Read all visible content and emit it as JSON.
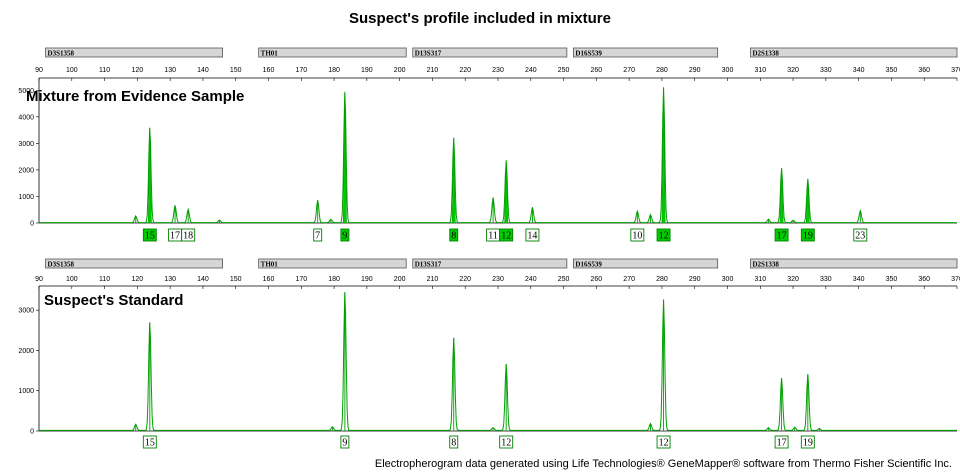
{
  "title": "Suspect's profile included in mixture",
  "credit": "Electropherogram data generated using Life Technologies® GeneMapper® software from Thermo Fisher Scientific Inc.",
  "colors": {
    "peak": "#00cc00",
    "peak_line": "#00a000",
    "allele_box": "#008000",
    "marker_bar": "#d6d6d6"
  },
  "chart_data": [
    {
      "type": "electropherogram",
      "panel_label": "Mixture from Evidence Sample",
      "filled": true,
      "xlim": [
        90,
        370
      ],
      "ylim": [
        0,
        5200
      ],
      "x_ticks": [
        90,
        100,
        110,
        120,
        130,
        140,
        150,
        160,
        170,
        180,
        190,
        200,
        210,
        220,
        230,
        240,
        250,
        260,
        270,
        280,
        290,
        300,
        310,
        320,
        330,
        340,
        350,
        360,
        370
      ],
      "y_ticks": [
        0,
        1000,
        2000,
        3000,
        4000,
        5000
      ],
      "markers": [
        {
          "name": "D3S1358",
          "start": 92,
          "end": 146
        },
        {
          "name": "TH01",
          "start": 157,
          "end": 202
        },
        {
          "name": "D13S317",
          "start": 204,
          "end": 251
        },
        {
          "name": "D16S539",
          "start": 253,
          "end": 297
        },
        {
          "name": "D2S1338",
          "start": 307,
          "end": 370
        }
      ],
      "peaks": [
        {
          "x": 119.5,
          "y": 250
        },
        {
          "x": 123.8,
          "y": 3600
        },
        {
          "x": 131.5,
          "y": 650
        },
        {
          "x": 135.5,
          "y": 500
        },
        {
          "x": 145,
          "y": 100
        },
        {
          "x": 175,
          "y": 850
        },
        {
          "x": 179,
          "y": 120
        },
        {
          "x": 183.3,
          "y": 4950
        },
        {
          "x": 216.5,
          "y": 3200
        },
        {
          "x": 228.5,
          "y": 950
        },
        {
          "x": 232.5,
          "y": 2350
        },
        {
          "x": 240.5,
          "y": 580
        },
        {
          "x": 272.5,
          "y": 430
        },
        {
          "x": 276.5,
          "y": 300
        },
        {
          "x": 280.5,
          "y": 5100
        },
        {
          "x": 312.5,
          "y": 130
        },
        {
          "x": 316.5,
          "y": 2050
        },
        {
          "x": 320,
          "y": 90
        },
        {
          "x": 324.5,
          "y": 1650
        },
        {
          "x": 340.5,
          "y": 450
        }
      ],
      "alleles": [
        {
          "label": "15",
          "x": 123.8,
          "highlight": true
        },
        {
          "label": "17",
          "x": 131.5,
          "highlight": false
        },
        {
          "label": "18",
          "x": 135.5,
          "highlight": false
        },
        {
          "label": "7",
          "x": 175,
          "highlight": false
        },
        {
          "label": "9",
          "x": 183.3,
          "highlight": true
        },
        {
          "label": "8",
          "x": 216.5,
          "highlight": true
        },
        {
          "label": "11",
          "x": 228.5,
          "highlight": false
        },
        {
          "label": "12",
          "x": 232.5,
          "highlight": true
        },
        {
          "label": "14",
          "x": 240.5,
          "highlight": false
        },
        {
          "label": "10",
          "x": 272.5,
          "highlight": false
        },
        {
          "label": "12",
          "x": 280.5,
          "highlight": true
        },
        {
          "label": "17",
          "x": 316.5,
          "highlight": true
        },
        {
          "label": "19",
          "x": 324.5,
          "highlight": true
        },
        {
          "label": "23",
          "x": 340.5,
          "highlight": false
        }
      ]
    },
    {
      "type": "electropherogram",
      "panel_label": "Suspect's Standard",
      "filled": false,
      "xlim": [
        90,
        370
      ],
      "ylim": [
        0,
        3600
      ],
      "x_ticks": [
        90,
        100,
        110,
        120,
        130,
        140,
        150,
        160,
        170,
        180,
        190,
        200,
        210,
        220,
        230,
        240,
        250,
        260,
        270,
        280,
        290,
        300,
        310,
        320,
        330,
        340,
        350,
        360,
        370
      ],
      "y_ticks": [
        0,
        1000,
        2000,
        3000
      ],
      "markers": [
        {
          "name": "D3S1358",
          "start": 92,
          "end": 146
        },
        {
          "name": "TH01",
          "start": 157,
          "end": 202
        },
        {
          "name": "D13S317",
          "start": 204,
          "end": 251
        },
        {
          "name": "D16S539",
          "start": 253,
          "end": 297
        },
        {
          "name": "D2S1338",
          "start": 307,
          "end": 370
        }
      ],
      "peaks": [
        {
          "x": 119.5,
          "y": 150
        },
        {
          "x": 123.8,
          "y": 2700
        },
        {
          "x": 179.5,
          "y": 90
        },
        {
          "x": 183.3,
          "y": 3450
        },
        {
          "x": 216.5,
          "y": 2300
        },
        {
          "x": 228.5,
          "y": 70
        },
        {
          "x": 232.5,
          "y": 1650
        },
        {
          "x": 276.5,
          "y": 170
        },
        {
          "x": 280.5,
          "y": 3250
        },
        {
          "x": 312.5,
          "y": 70
        },
        {
          "x": 316.5,
          "y": 1300
        },
        {
          "x": 320.5,
          "y": 80
        },
        {
          "x": 324.5,
          "y": 1400
        },
        {
          "x": 328,
          "y": 50
        }
      ],
      "alleles": [
        {
          "label": "15",
          "x": 123.8,
          "highlight": false
        },
        {
          "label": "9",
          "x": 183.3,
          "highlight": false
        },
        {
          "label": "8",
          "x": 216.5,
          "highlight": false
        },
        {
          "label": "12",
          "x": 232.5,
          "highlight": false
        },
        {
          "label": "12",
          "x": 280.5,
          "highlight": false
        },
        {
          "label": "17",
          "x": 316.5,
          "highlight": false
        },
        {
          "label": "19",
          "x": 324.5,
          "highlight": false
        }
      ]
    }
  ]
}
